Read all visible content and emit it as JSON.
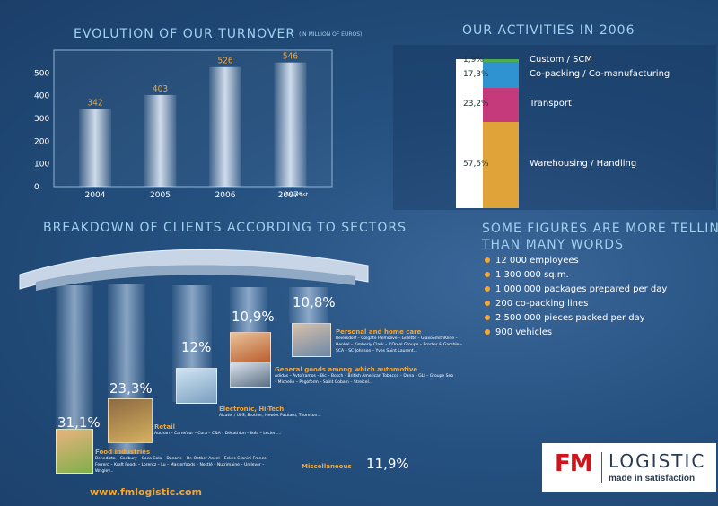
{
  "turnover": {
    "title": "EVOLUTION OF OUR TURNOVER",
    "subtitle": "(IN MILLION OF EUROS)",
    "footnote": "*forecast"
  },
  "chart_data": {
    "type": "bar",
    "title": "EVOLUTION OF OUR TURNOVER",
    "subtitle": "(IN MILLION OF EUROS)",
    "categories": [
      "2004",
      "2005",
      "2006",
      "2007*"
    ],
    "values": [
      342,
      403,
      526,
      546
    ],
    "value_labels": [
      "342",
      "403",
      "526",
      "546"
    ],
    "yticks": [
      "0",
      "100",
      "200",
      "300",
      "400",
      "500"
    ],
    "ylim": [
      0,
      600
    ],
    "xlabel": "",
    "ylabel": "",
    "grid": false
  },
  "activities": {
    "title": "OUR ACTIVITIES IN 2006",
    "items": [
      {
        "pct": "1,9%",
        "value": 1.9,
        "label": "Custom / SCM",
        "color": "#4caf4c"
      },
      {
        "pct": "17,3%",
        "value": 17.3,
        "label": "Co-packing / Co-manufacturing",
        "color": "#2f93d2"
      },
      {
        "pct": "23,2%",
        "value": 23.2,
        "label": "Transport",
        "color": "#c43a7a"
      },
      {
        "pct": "57,5%",
        "value": 57.5,
        "label": "Warehousing / Handling",
        "color": "#e0a33a"
      }
    ]
  },
  "figures": {
    "title_line1": "SOME FIGURES ARE MORE TELLING",
    "title_line2": "THAN MANY WORDS",
    "items": [
      "12 000 employees",
      "1 300 000 sq.m.",
      "1 000 000 packages prepared per day",
      "200 co-packing lines",
      "2 500 000 pieces packed per day",
      "900 vehicles"
    ]
  },
  "sectors": {
    "title": "BREAKDOWN OF CLIENTS ACCORDING TO SECTORS",
    "food": {
      "pct": "31,1%",
      "title": "Food industries",
      "desc": "Benedicta – Cadbury – Coca Cola – Danone – Dr. Oetker Ancel – Eckes Granini France – Ferrero – Kraft Foods – Lorentz – Lu – Masterfoods – Nestlé – Nutrimaine – Unilever – Wrigley..."
    },
    "retail": {
      "pct": "23,3%",
      "title": "Retail",
      "desc": "Auchan – Carrefour – Cora – C&A – Décathlon – Ikéa – Leclerc..."
    },
    "electronic": {
      "pct": "12%",
      "title": "Electronic, Hi-Tech",
      "desc": "Alcatel / UPS, Brother, Hewlet Packard, Thomson..."
    },
    "general": {
      "pct": "10,9%",
      "title": "General goods among which automotive",
      "desc": "Adidas – Avtoframos – Bic – Bosch – British American Tobacco – Dana – GLI – Groupe Seb – Michelin – Pegoform – Saint Gobain – Streicel..."
    },
    "personal": {
      "pct": "10,8%",
      "title": "Personal and home care",
      "desc": "Beiersdorf – Colgate Palmolive – Gillette – GlaxoSmithKline – Henkel – Kimberly Clark – L'Oréal Groupe – Procter & Gamble – SCA – SC Johnson – Yves Saint Laurent..."
    },
    "misc": {
      "pct": "11,9%",
      "title": "Miscellaneous"
    }
  },
  "footer": {
    "url": "www.fmlogistic.com"
  },
  "logo": {
    "mark": "FM",
    "name": "LOGISTIC",
    "tagline": "made in satisfaction"
  },
  "colors": {
    "accent": "#f0a638",
    "heading": "#9fd0ee",
    "logo_red": "#d0141c",
    "background": "#24507f"
  }
}
